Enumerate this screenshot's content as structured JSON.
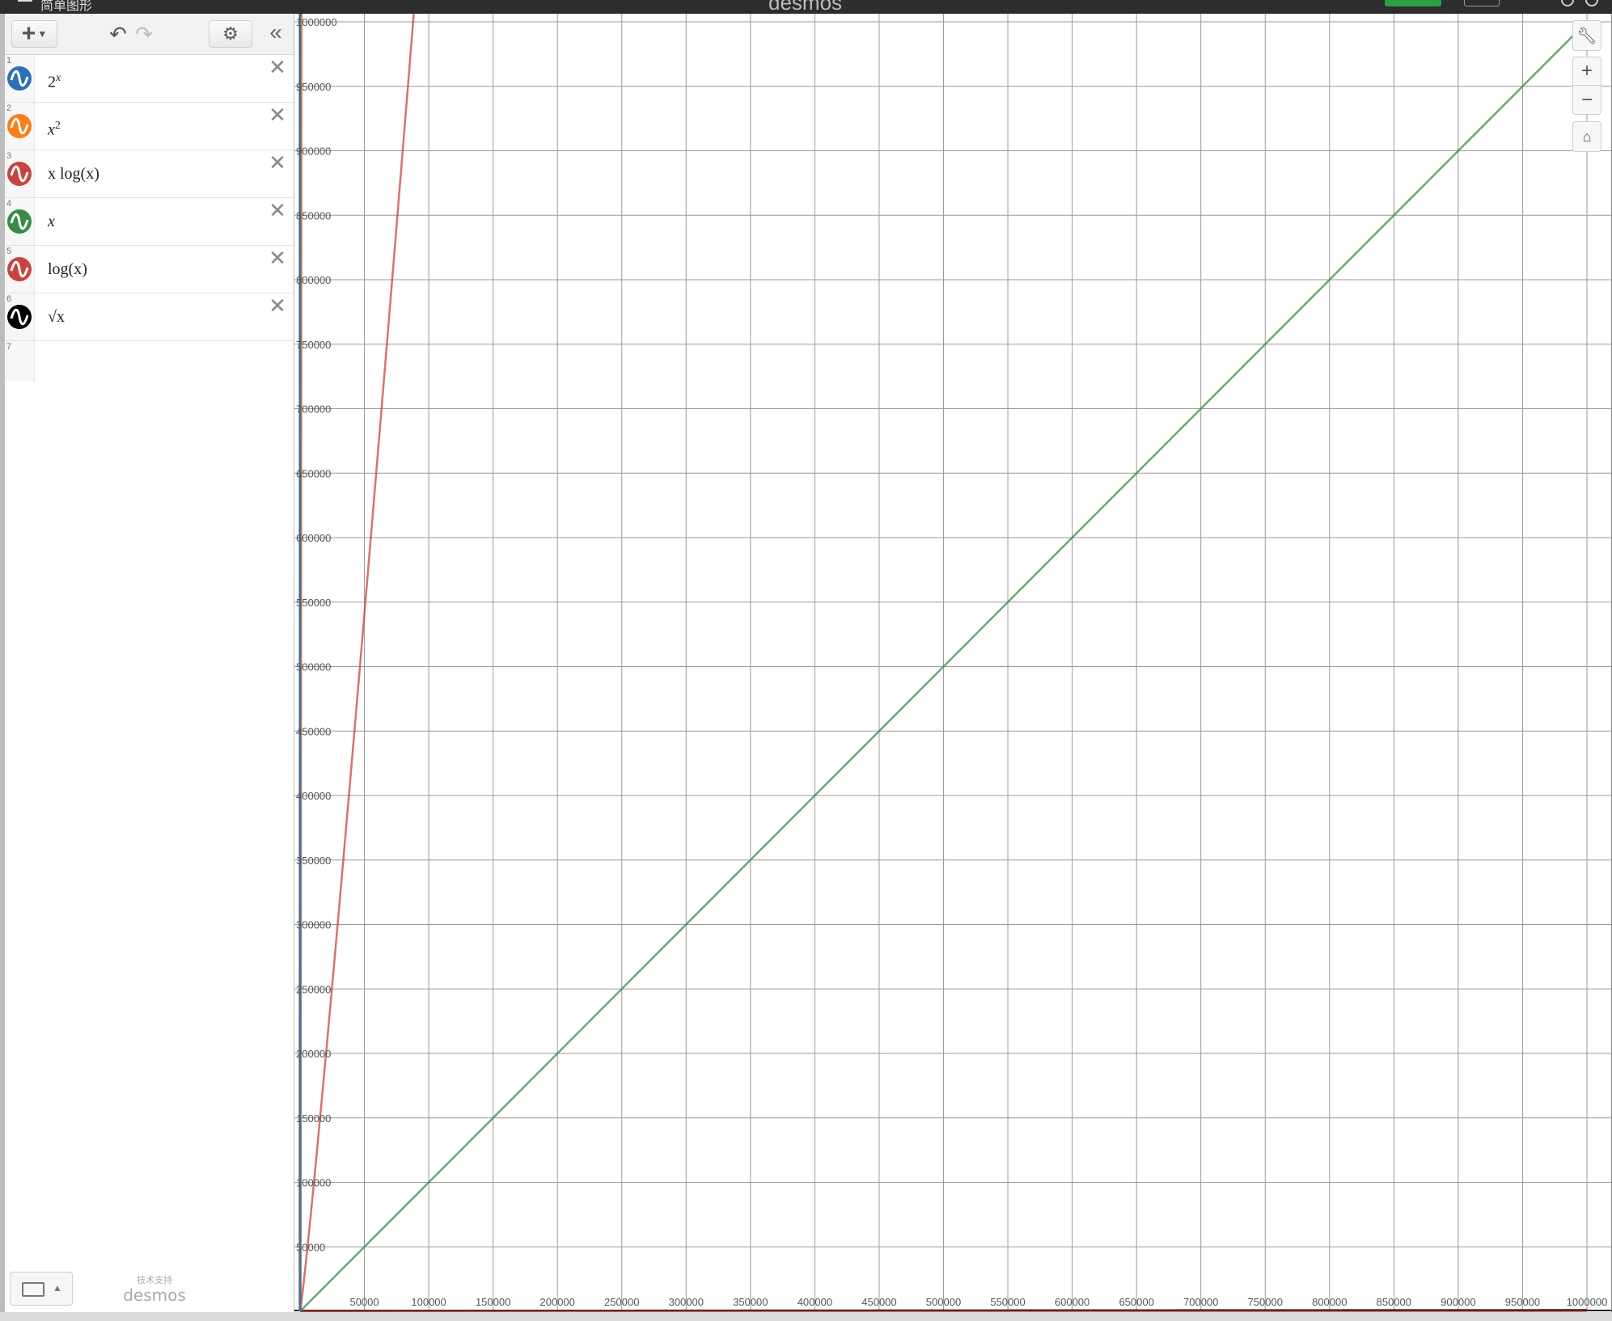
{
  "titlebar": {
    "title": "简单图形",
    "brand": "desmos",
    "menu_icon": "hamburger-icon"
  },
  "toolbar": {
    "add_icon": "plus-icon",
    "undo_icon": "undo-icon",
    "redo_icon": "redo-icon",
    "settings_icon": "gear-icon",
    "collapse_icon": "double-chevron-left-icon"
  },
  "expressions": [
    {
      "index": "1",
      "base": "2",
      "exponent": "x",
      "color": "#2d70b3"
    },
    {
      "index": "2",
      "base": "x",
      "exponent": "2",
      "color": "#fa7e19"
    },
    {
      "index": "3",
      "text": "x log(x)",
      "color": "#c74440"
    },
    {
      "index": "4",
      "text": "x",
      "color": "#388c46"
    },
    {
      "index": "5",
      "text": "log(x)",
      "color": "#c74440"
    },
    {
      "index": "6",
      "text": "√x",
      "color": "#000000"
    },
    {
      "index": "7"
    }
  ],
  "footer": {
    "powered_by": "技术支持",
    "brand": "desmos",
    "keyboard_icon": "keyboard-icon"
  },
  "graph_controls": {
    "wrench_icon": "wrench-icon",
    "zoom_in": "+",
    "zoom_out": "−",
    "home_icon": "home-icon"
  },
  "chart_data": {
    "type": "line",
    "xlim": [
      0,
      1000000
    ],
    "ylim": [
      0,
      1000000
    ],
    "grid": true,
    "x_ticks": [
      "50000",
      "100000",
      "150000",
      "200000",
      "250000",
      "300000",
      "350000",
      "400000",
      "450000",
      "500000",
      "550000",
      "600000",
      "650000",
      "700000",
      "750000",
      "800000",
      "850000",
      "900000",
      "950000",
      "1000000"
    ],
    "y_ticks": [
      "50000",
      "100000",
      "150000",
      "200000",
      "250000",
      "300000",
      "350000",
      "400000",
      "450000",
      "500000",
      "550000",
      "600000",
      "650000",
      "700000",
      "750000",
      "800000",
      "850000",
      "900000",
      "950000",
      "1000000"
    ],
    "series": [
      {
        "name": "2^x",
        "color": "#2d70b3",
        "x": [
          0,
          20
        ],
        "y": [
          1,
          1048576
        ]
      },
      {
        "name": "x^2",
        "color": "#fa7e19",
        "x": [
          0,
          1000
        ],
        "y": [
          0,
          1000000
        ]
      },
      {
        "name": "x log(x)",
        "color": "#c74440",
        "x": [
          0,
          190000
        ],
        "y": [
          0,
          1000000
        ]
      },
      {
        "name": "x",
        "color": "#388c46",
        "x": [
          0,
          1000000
        ],
        "y": [
          0,
          1000000
        ]
      },
      {
        "name": "log(x)",
        "color": "#c74440",
        "x": [
          1,
          1000000
        ],
        "y": [
          0,
          6
        ]
      },
      {
        "name": "√x",
        "color": "#000000",
        "x": [
          0,
          1000000
        ],
        "y": [
          0,
          1000
        ]
      }
    ]
  }
}
